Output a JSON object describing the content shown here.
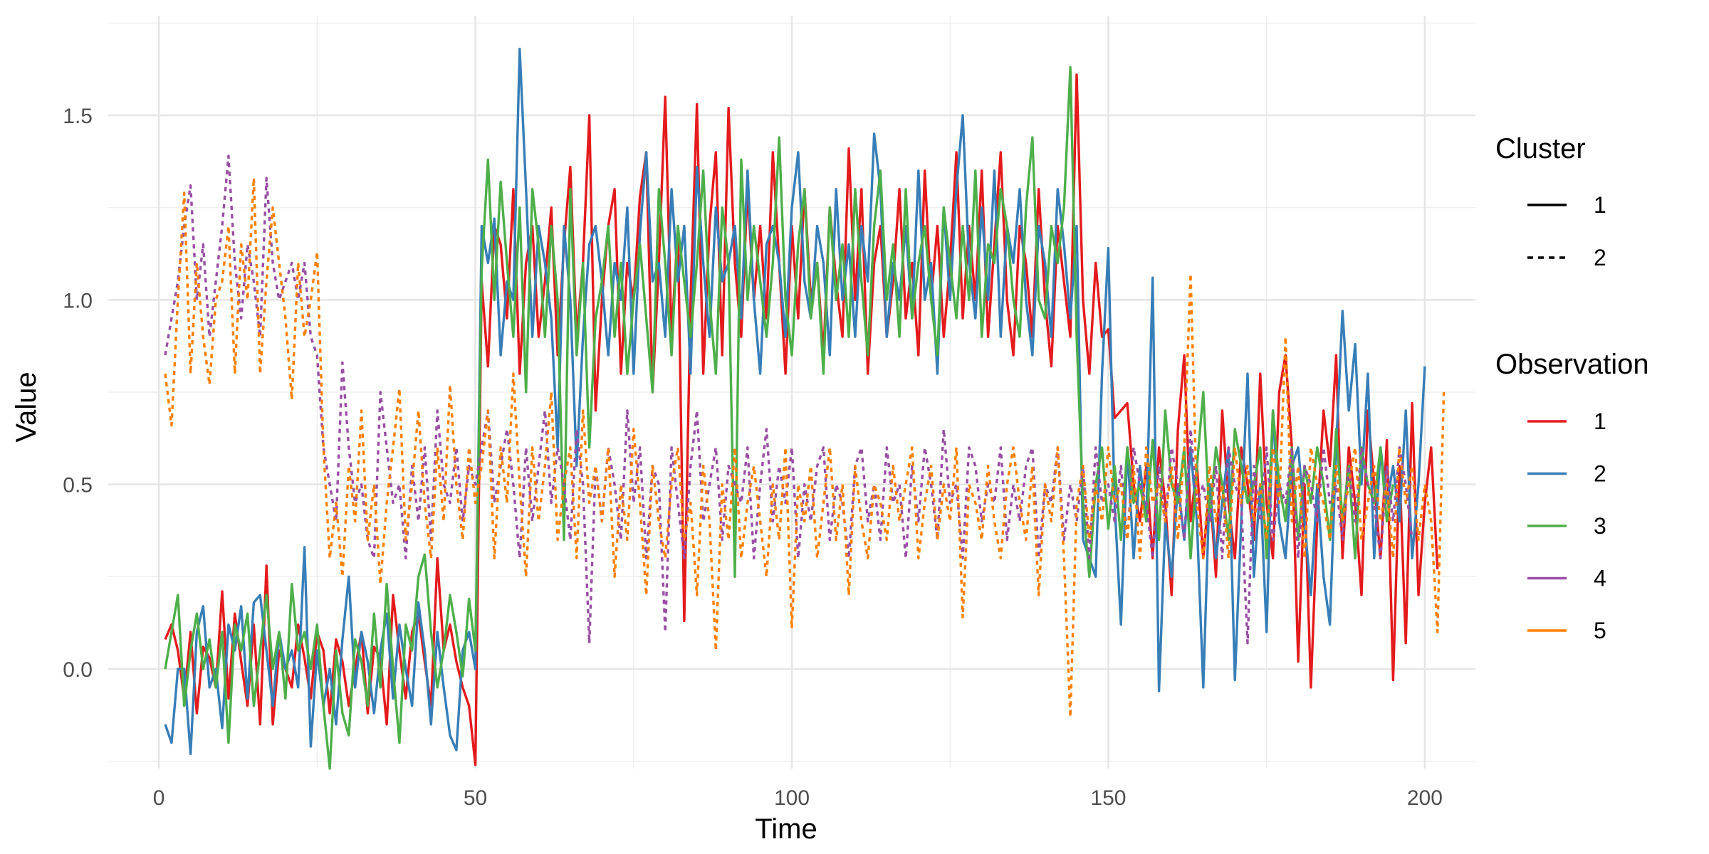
{
  "chart_data": {
    "type": "line",
    "title": "",
    "xlabel": "Time",
    "ylabel": "Value",
    "xlim": [
      -8,
      208
    ],
    "ylim": [
      -0.27,
      1.77
    ],
    "xticks": [
      0,
      50,
      100,
      150,
      200
    ],
    "xtick_labels": [
      "0",
      "50",
      "100",
      "150",
      "200"
    ],
    "yticks": [
      0.0,
      0.5,
      1.0,
      1.5
    ],
    "ytick_labels": [
      "0.0",
      "0.5",
      "1.0",
      "1.5"
    ],
    "grid": true,
    "legend_position": "right",
    "colors": {
      "1": "#e41a1c",
      "2": "#377eb8",
      "3": "#4daf4a",
      "4": "#984ea3",
      "5": "#ff7f00"
    },
    "legends": {
      "cluster": {
        "title": "Cluster",
        "items": [
          {
            "label": "1",
            "linetype": "solid"
          },
          {
            "label": "2",
            "linetype": "dashed"
          }
        ]
      },
      "observation": {
        "title": "Observation",
        "items": [
          {
            "label": "1",
            "color": "#e41a1c"
          },
          {
            "label": "2",
            "color": "#377eb8"
          },
          {
            "label": "3",
            "color": "#4daf4a"
          },
          {
            "label": "4",
            "color": "#984ea3"
          },
          {
            "label": "5",
            "color": "#ff7f00"
          }
        ]
      }
    },
    "series": [
      {
        "observation": "1",
        "cluster": "1",
        "color": "#e41a1c",
        "linetype": "solid",
        "x_start": 1,
        "x_step": 1,
        "values": [
          0.08,
          0.12,
          0.05,
          -0.08,
          0.1,
          -0.12,
          0.06,
          0.03,
          -0.05,
          0.21,
          -0.08,
          0.15,
          0.02,
          -0.1,
          0.12,
          -0.15,
          0.28,
          -0.15,
          0.05,
          0.0,
          -0.05,
          0.12,
          0.03,
          -0.08,
          0.1,
          0.05,
          -0.12,
          0.08,
          0.02,
          -0.1,
          0.0,
          0.1,
          -0.12,
          0.06,
          0.03,
          -0.15,
          0.2,
          0.05,
          -0.08,
          0.1,
          0.15,
          0.02,
          -0.1,
          0.3,
          0.05,
          0.12,
          0.02,
          -0.05,
          -0.1,
          -0.26,
          1.05,
          0.82,
          1.2,
          1.15,
          0.95,
          1.3,
          0.8,
          1.1,
          1.2,
          0.9,
          1.05,
          1.25,
          0.85,
          1.15,
          1.36,
          0.9,
          1.1,
          1.5,
          0.7,
          1.0,
          1.2,
          1.3,
          0.8,
          1.1,
          1.0,
          1.28,
          1.4,
          0.75,
          1.1,
          1.55,
          0.9,
          1.2,
          0.13,
          1.0,
          1.53,
          0.8,
          1.2,
          1.4,
          0.85,
          1.52,
          1.1,
          0.9,
          1.3,
          1.0,
          1.2,
          0.95,
          1.4,
          1.1,
          0.8,
          1.2,
          0.95,
          1.3,
          1.0,
          1.1,
          0.85,
          1.25,
          1.05,
          0.9,
          1.41,
          1.0,
          1.3,
          0.8,
          1.1,
          1.2,
          0.9,
          1.05,
          1.3,
          0.95,
          1.1,
          0.85,
          1.35,
          1.0,
          1.2,
          0.9,
          1.1,
          1.4,
          0.95,
          1.2,
          1.0,
          1.35,
          0.9,
          1.15,
          1.4,
          1.0,
          0.85,
          1.2,
          1.1,
          0.9,
          1.3,
          1.0,
          0.82,
          1.2,
          1.05,
          0.9,
          1.61,
          1.0,
          0.8,
          1.1,
          0.9,
          0.92,
          0.68,
          0.7,
          0.72,
          0.5,
          0.4,
          0.55,
          0.3,
          0.6,
          0.45,
          0.2,
          0.65,
          0.85,
          0.4,
          0.55,
          0.3,
          0.5,
          0.25,
          0.7,
          0.45,
          0.3,
          0.6,
          0.5,
          0.35,
          0.8,
          0.45,
          0.3,
          0.75,
          0.85,
          0.6,
          0.02,
          0.5,
          -0.05,
          0.4,
          0.7,
          0.55,
          0.85,
          0.3,
          0.6,
          0.45,
          0.2,
          0.7,
          0.5,
          0.3,
          0.62,
          -0.03,
          0.55,
          0.07,
          0.72,
          0.2,
          0.45,
          0.6,
          0.27
        ]
      },
      {
        "observation": "2",
        "cluster": "1",
        "color": "#377eb8",
        "linetype": "solid",
        "x_start": 1,
        "x_step": 1,
        "values": [
          -0.15,
          -0.2,
          0.0,
          0.0,
          -0.23,
          0.1,
          0.17,
          -0.05,
          0.0,
          -0.16,
          0.12,
          0.05,
          0.17,
          -0.08,
          0.18,
          0.2,
          0.05,
          -0.1,
          0.1,
          0.0,
          0.05,
          -0.05,
          0.33,
          -0.21,
          0.05,
          -0.1,
          0.0,
          -0.15,
          0.08,
          0.25,
          -0.05,
          0.1,
          0.02,
          -0.12,
          0.05,
          0.15,
          -0.08,
          0.12,
          0.0,
          -0.1,
          0.18,
          0.05,
          -0.15,
          0.1,
          -0.05,
          -0.18,
          -0.22,
          0.05,
          0.1,
          0.0,
          1.2,
          1.1,
          1.22,
          0.85,
          1.05,
          1.0,
          1.68,
          1.3,
          0.9,
          1.2,
          1.1,
          0.95,
          0.6,
          1.2,
          1.0,
          0.55,
          0.9,
          1.15,
          1.2,
          1.05,
          0.85,
          1.1,
          1.0,
          1.25,
          0.8,
          1.18,
          1.4,
          1.05,
          1.1,
          0.9,
          1.3,
          1.05,
          1.2,
          0.8,
          1.36,
          1.1,
          0.9,
          1.25,
          1.05,
          1.1,
          1.2,
          0.95,
          1.35,
          1.0,
          0.8,
          1.15,
          1.2,
          1.1,
          0.9,
          1.25,
          1.4,
          1.05,
          0.95,
          1.2,
          1.1,
          0.85,
          1.3,
          1.0,
          1.15,
          0.9,
          1.2,
          1.05,
          1.45,
          1.3,
          0.9,
          1.1,
          1.0,
          1.2,
          0.95,
          1.35,
          1.0,
          1.1,
          0.8,
          1.25,
          1.0,
          1.3,
          1.5,
          1.1,
          0.95,
          1.25,
          1.0,
          1.35,
          0.9,
          1.2,
          1.1,
          1.3,
          1.0,
          0.85,
          1.2,
          1.1,
          0.9,
          1.3,
          1.15,
          0.95,
          1.2,
          0.35,
          0.3,
          0.25,
          0.8,
          1.14,
          0.45,
          0.12,
          0.6,
          0.3,
          0.55,
          0.4,
          1.06,
          -0.06,
          0.4,
          0.25,
          0.5,
          0.35,
          0.6,
          0.4,
          -0.05,
          0.5,
          0.3,
          0.45,
          0.6,
          -0.03,
          0.4,
          0.8,
          0.25,
          0.5,
          0.1,
          0.7,
          0.4,
          0.3,
          0.55,
          0.6,
          0.4,
          0.2,
          0.5,
          0.25,
          0.12,
          0.6,
          0.97,
          0.7,
          0.88,
          0.5,
          0.8,
          0.3,
          0.6,
          0.45,
          0.55,
          0.4,
          0.7,
          0.3,
          0.5,
          0.82
        ]
      },
      {
        "observation": "3",
        "cluster": "1",
        "color": "#4daf4a",
        "linetype": "solid",
        "x_start": 1,
        "x_step": 1,
        "values": [
          0.0,
          0.1,
          0.2,
          -0.1,
          0.05,
          0.15,
          0.0,
          0.08,
          -0.05,
          0.1,
          -0.2,
          0.12,
          0.05,
          0.15,
          -0.1,
          0.05,
          0.2,
          0.0,
          0.1,
          -0.08,
          0.23,
          0.05,
          0.1,
          0.0,
          0.12,
          -0.1,
          -0.27,
          0.05,
          -0.12,
          -0.18,
          0.08,
          0.02,
          -0.1,
          0.15,
          -0.05,
          0.23,
          0.0,
          -0.2,
          0.12,
          0.05,
          0.25,
          0.31,
          0.1,
          -0.05,
          0.05,
          0.2,
          0.1,
          -0.02,
          0.19,
          0.05,
          1.08,
          1.38,
          1.0,
          1.32,
          1.1,
          0.9,
          1.25,
          0.75,
          1.3,
          1.15,
          0.9,
          1.2,
          1.0,
          0.35,
          1.3,
          0.85,
          1.1,
          0.6,
          0.95,
          1.05,
          1.2,
          0.9,
          1.1,
          0.8,
          1.0,
          1.15,
          0.95,
          0.75,
          1.3,
          1.1,
          0.85,
          1.2,
          1.05,
          0.9,
          1.1,
          1.35,
          1.0,
          0.8,
          1.25,
          1.1,
          0.25,
          1.38,
          1.0,
          1.2,
          1.05,
          0.9,
          1.1,
          1.44,
          1.0,
          0.85,
          1.15,
          1.3,
          0.95,
          1.1,
          0.8,
          1.25,
          1.0,
          1.15,
          0.9,
          1.3,
          1.05,
          0.85,
          1.2,
          1.35,
          1.0,
          1.15,
          0.9,
          1.3,
          0.95,
          1.1,
          1.2,
          1.0,
          0.85,
          1.25,
          1.1,
          0.95,
          1.2,
          1.0,
          1.35,
          0.9,
          1.15,
          1.1,
          1.3,
          1.2,
          1.0,
          0.9,
          1.25,
          1.44,
          1.0,
          0.95,
          1.2,
          1.1,
          1.25,
          1.63,
          0.9,
          0.45,
          0.25,
          0.5,
          0.6,
          0.38,
          0.55,
          0.35,
          0.6,
          0.45,
          0.5,
          0.4,
          0.62,
          0.35,
          0.7,
          0.5,
          0.45,
          0.6,
          0.3,
          0.55,
          0.75,
          0.4,
          0.6,
          0.5,
          0.35,
          0.65,
          0.55,
          0.45,
          0.5,
          0.6,
          0.3,
          0.7,
          0.5,
          0.4,
          0.6,
          0.35,
          0.55,
          0.45,
          0.6,
          0.5,
          0.35,
          0.65,
          0.4,
          0.55,
          0.3,
          0.6,
          0.5,
          0.45,
          0.6,
          0.4,
          0.5
        ]
      },
      {
        "observation": "4",
        "cluster": "2",
        "color": "#984ea3",
        "linetype": "dashed",
        "x_start": 1,
        "x_step": 1,
        "values": [
          0.85,
          0.95,
          1.05,
          1.2,
          1.31,
          1.0,
          1.15,
          0.9,
          1.05,
          1.2,
          1.39,
          1.1,
          0.95,
          1.15,
          1.05,
          0.9,
          1.33,
          1.1,
          1.0,
          1.05,
          1.1,
          1.0,
          1.1,
          0.9,
          0.85,
          0.6,
          0.5,
          0.4,
          0.83,
          0.6,
          0.45,
          0.5,
          0.35,
          0.3,
          0.75,
          0.6,
          0.45,
          0.5,
          0.3,
          0.55,
          0.4,
          0.6,
          0.35,
          0.7,
          0.5,
          0.45,
          0.6,
          0.4,
          0.55,
          0.5,
          0.6,
          0.7,
          0.45,
          0.55,
          0.65,
          0.5,
          0.3,
          0.6,
          0.4,
          0.55,
          0.7,
          0.45,
          0.6,
          0.5,
          0.35,
          0.65,
          0.5,
          0.07,
          0.55,
          0.4,
          0.6,
          0.5,
          0.35,
          0.7,
          0.45,
          0.6,
          0.3,
          0.55,
          0.5,
          0.1,
          0.6,
          0.45,
          0.3,
          0.55,
          0.7,
          0.4,
          0.5,
          0.6,
          0.35,
          0.55,
          0.5,
          0.45,
          0.6,
          0.3,
          0.5,
          0.65,
          0.4,
          0.55,
          0.45,
          0.6,
          0.3,
          0.5,
          0.4,
          0.55,
          0.6,
          0.35,
          0.5,
          0.45,
          0.3,
          0.55,
          0.6,
          0.4,
          0.5,
          0.35,
          0.6,
          0.45,
          0.5,
          0.3,
          0.55,
          0.4,
          0.6,
          0.5,
          0.35,
          0.65,
          0.45,
          0.5,
          0.3,
          0.6,
          0.55,
          0.4,
          0.5,
          0.45,
          0.6,
          0.35,
          0.5,
          0.4,
          0.55,
          0.6,
          0.3,
          0.5,
          0.45,
          0.6,
          0.35,
          0.5,
          0.4,
          0.55,
          0.3,
          0.6,
          0.45,
          0.5,
          0.4,
          0.55,
          0.35,
          0.6,
          0.5,
          0.45,
          0.3,
          0.55,
          0.4,
          0.6,
          0.5,
          0.35,
          0.65,
          0.45,
          0.5,
          0.4,
          0.55,
          0.3,
          0.6,
          0.5,
          0.45,
          0.07,
          0.55,
          0.4,
          0.6,
          0.35,
          0.5,
          0.45,
          0.6,
          0.3,
          0.55,
          0.5,
          0.4,
          0.6,
          0.45,
          0.5,
          0.35,
          0.55,
          0.4,
          0.6,
          0.5,
          0.45,
          0.3,
          0.55,
          0.4,
          0.6,
          0.5,
          0.35
        ]
      },
      {
        "observation": "5",
        "cluster": "2",
        "color": "#ff7f00",
        "linetype": "dashed",
        "x_start": 1,
        "x_step": 1,
        "values": [
          0.8,
          0.66,
          1.0,
          1.29,
          0.8,
          1.1,
          0.9,
          0.77,
          1.0,
          1.05,
          1.2,
          0.8,
          1.15,
          1.0,
          1.33,
          0.8,
          1.05,
          1.25,
          1.1,
          0.95,
          0.73,
          1.1,
          0.9,
          1.0,
          1.13,
          0.6,
          0.3,
          0.45,
          0.25,
          0.55,
          0.4,
          0.7,
          0.35,
          0.5,
          0.23,
          0.45,
          0.6,
          0.76,
          0.35,
          0.5,
          0.7,
          0.45,
          0.3,
          0.6,
          0.4,
          0.77,
          0.5,
          0.35,
          0.6,
          0.45,
          0.55,
          0.7,
          0.3,
          0.6,
          0.45,
          0.8,
          0.5,
          0.25,
          0.6,
          0.4,
          0.55,
          0.75,
          0.35,
          0.5,
          0.6,
          0.3,
          0.7,
          0.45,
          0.55,
          0.4,
          0.6,
          0.25,
          0.5,
          0.35,
          0.65,
          0.45,
          0.2,
          0.55,
          0.4,
          0.3,
          0.5,
          0.6,
          0.35,
          0.45,
          0.2,
          0.55,
          0.4,
          0.05,
          0.5,
          0.35,
          0.6,
          0.3,
          0.45,
          0.55,
          0.4,
          0.25,
          0.5,
          0.35,
          0.6,
          0.11,
          0.5,
          0.4,
          0.55,
          0.3,
          0.45,
          0.6,
          0.35,
          0.5,
          0.2,
          0.55,
          0.4,
          0.3,
          0.5,
          0.45,
          0.35,
          0.55,
          0.4,
          0.5,
          0.6,
          0.3,
          0.45,
          0.55,
          0.35,
          0.5,
          0.4,
          0.6,
          0.14,
          0.5,
          0.45,
          0.35,
          0.55,
          0.4,
          0.3,
          0.5,
          0.6,
          0.45,
          0.35,
          0.55,
          0.2,
          0.5,
          0.4,
          0.6,
          0.3,
          -0.13,
          0.45,
          0.55,
          0.35,
          0.5,
          0.4,
          0.6,
          0.45,
          0.5,
          0.35,
          0.55,
          0.3,
          0.6,
          0.45,
          0.5,
          0.4,
          0.55,
          0.35,
          0.6,
          1.07,
          0.45,
          0.3,
          0.55,
          0.4,
          0.5,
          0.3,
          0.6,
          0.45,
          0.55,
          0.4,
          0.5,
          0.35,
          0.6,
          0.45,
          0.9,
          0.4,
          0.55,
          0.3,
          0.6,
          0.5,
          0.45,
          0.35,
          0.55,
          0.4,
          0.5,
          0.6,
          0.35,
          0.45,
          0.55,
          0.4,
          0.5,
          0.3,
          0.6,
          0.45,
          0.55,
          0.35,
          0.5,
          0.4,
          0.1,
          0.75
        ]
      }
    ]
  }
}
